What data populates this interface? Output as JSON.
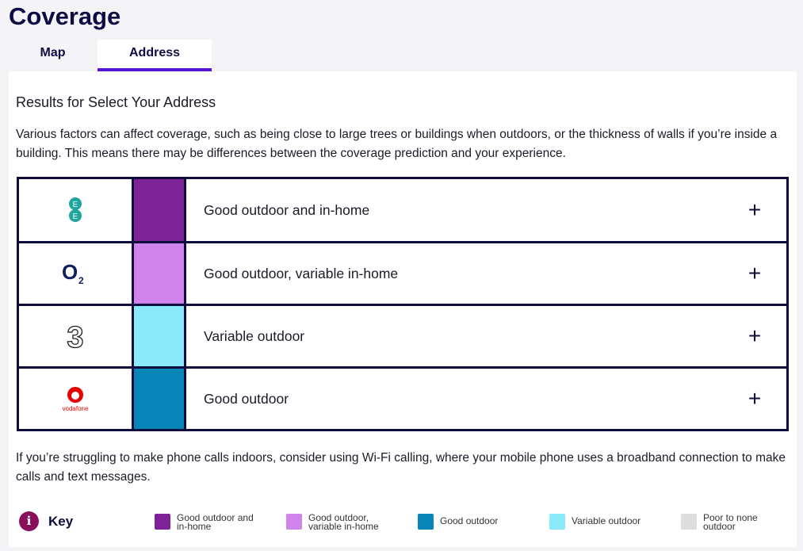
{
  "title": "Coverage",
  "tabs": [
    {
      "label": "Map"
    },
    {
      "label": "Address"
    }
  ],
  "heading": "Results for Select Your Address",
  "intro": "Various factors can affect coverage, such as being close to large trees or buildings when outdoors, or the thickness of walls if you’re inside a building. This means there may be differences between the coverage prediction and your experience.",
  "operators": [
    {
      "name": "EE",
      "color": "#7e2297",
      "status": "Good outdoor and in-home"
    },
    {
      "name": "O2",
      "color": "#d183ec",
      "status": "Good outdoor, variable in-home"
    },
    {
      "name": "3",
      "color": "#8ae9fb",
      "status": "Variable outdoor"
    },
    {
      "name": "vodafone",
      "color": "#0686b8",
      "status": "Good outdoor"
    }
  ],
  "expand_icon": "+",
  "footer_note": "If you’re struggling to make phone calls indoors, consider using Wi-Fi calling, where your mobile phone uses a broadband connection to make calls and text messages.",
  "key": {
    "label": "Key",
    "icon": "i",
    "items": [
      {
        "label": "Good outdoor and in-home",
        "color": "#7e2297"
      },
      {
        "label": "Good outdoor, variable in-home",
        "color": "#d183ec"
      },
      {
        "label": "Good outdoor",
        "color": "#0686b8"
      },
      {
        "label": "Variable outdoor",
        "color": "#8ae9fb"
      },
      {
        "label": "Poor to none outdoor",
        "color": "#dddddd"
      }
    ]
  }
}
